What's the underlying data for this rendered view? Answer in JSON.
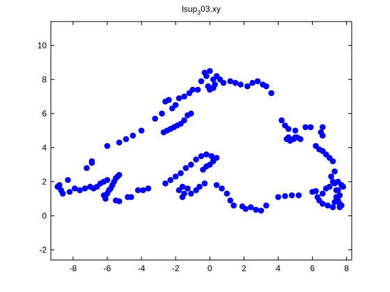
{
  "chart_data": {
    "type": "scatter",
    "title": "lsup",
    "title_sub": "3",
    "title_suffix": "03.xy",
    "xlim": [
      -9.3,
      8.3
    ],
    "ylim": [
      -2.6,
      11.4
    ],
    "xticks": [
      -8,
      -6,
      -4,
      -2,
      0,
      2,
      4,
      6,
      8
    ],
    "xtick_labels": [
      "-8",
      "-6",
      "-4",
      "-2",
      "0",
      "2",
      "4",
      "6",
      "8"
    ],
    "yticks": [
      -2,
      0,
      2,
      4,
      6,
      8,
      10
    ],
    "ytick_labels": [
      "-2",
      "0",
      "2",
      "4",
      "6",
      "8",
      "10"
    ],
    "grid": false,
    "marker_color": "#0000ff",
    "axis_color": "#000000",
    "points": [
      [
        -8.9,
        1.7
      ],
      [
        -8.8,
        1.8
      ],
      [
        -8.7,
        1.5
      ],
      [
        -8.6,
        1.3
      ],
      [
        -8.3,
        2.1
      ],
      [
        -8.2,
        1.4
      ],
      [
        -7.9,
        1.6
      ],
      [
        -7.6,
        1.5
      ],
      [
        -7.3,
        1.6
      ],
      [
        -7.0,
        1.7
      ],
      [
        -6.8,
        1.6
      ],
      [
        -6.6,
        1.7
      ],
      [
        -6.4,
        1.9
      ],
      [
        -6.2,
        2.0
      ],
      [
        -6.0,
        2.1
      ],
      [
        -7.2,
        2.8
      ],
      [
        -6.9,
        3.1
      ],
      [
        -6.2,
        1.2
      ],
      [
        -6.1,
        1.0
      ],
      [
        -6.0,
        1.3
      ],
      [
        -5.9,
        1.5
      ],
      [
        -5.8,
        1.6
      ],
      [
        -5.7,
        1.8
      ],
      [
        -5.6,
        2.0
      ],
      [
        -5.5,
        2.2
      ],
      [
        -5.4,
        2.3
      ],
      [
        -5.3,
        2.4
      ],
      [
        -5.5,
        0.9
      ],
      [
        -5.3,
        0.85
      ],
      [
        -4.8,
        1.1
      ],
      [
        -4.6,
        1.1
      ],
      [
        -4.2,
        1.5
      ],
      [
        -3.9,
        1.5
      ],
      [
        -3.6,
        1.6
      ],
      [
        -6.9,
        3.2
      ],
      [
        -6.0,
        4.1
      ],
      [
        -5.3,
        4.3
      ],
      [
        -4.9,
        4.5
      ],
      [
        -4.5,
        4.7
      ],
      [
        -4.0,
        5.0
      ],
      [
        -3.2,
        5.7
      ],
      [
        -2.8,
        6.0
      ],
      [
        -2.6,
        6.7
      ],
      [
        -2.4,
        6.8
      ],
      [
        -2.7,
        4.9
      ],
      [
        -2.5,
        5.0
      ],
      [
        -2.3,
        5.1
      ],
      [
        -2.1,
        5.2
      ],
      [
        -1.9,
        5.3
      ],
      [
        -1.7,
        5.4
      ],
      [
        -1.5,
        5.6
      ],
      [
        -1.3,
        5.9
      ],
      [
        -1.1,
        6.0
      ],
      [
        -2.2,
        6.3
      ],
      [
        -2.0,
        6.5
      ],
      [
        -1.8,
        6.9
      ],
      [
        -1.5,
        7.0
      ],
      [
        -1.2,
        7.2
      ],
      [
        -1.0,
        7.4
      ],
      [
        -0.7,
        7.4
      ],
      [
        -0.5,
        7.9
      ],
      [
        -0.3,
        8.4
      ],
      [
        -0.2,
        8.2
      ],
      [
        0.0,
        8.5
      ],
      [
        0.2,
        8.0
      ],
      [
        0.3,
        7.7
      ],
      [
        0.4,
        8.2
      ],
      [
        0.6,
        8.0
      ],
      [
        0.8,
        7.8
      ],
      [
        1.2,
        7.9
      ],
      [
        1.5,
        7.8
      ],
      [
        1.8,
        7.7
      ],
      [
        2.2,
        7.6
      ],
      [
        2.5,
        7.8
      ],
      [
        2.8,
        7.9
      ],
      [
        3.1,
        7.7
      ],
      [
        3.3,
        7.6
      ],
      [
        3.6,
        7.2
      ],
      [
        -0.1,
        7.6
      ],
      [
        0.0,
        7.4
      ],
      [
        0.2,
        7.5
      ],
      [
        -2.6,
        1.9
      ],
      [
        -2.3,
        2.1
      ],
      [
        -2.0,
        2.3
      ],
      [
        -1.7,
        2.5
      ],
      [
        -1.4,
        2.8
      ],
      [
        -1.1,
        3.0
      ],
      [
        -0.8,
        3.3
      ],
      [
        -0.5,
        3.5
      ],
      [
        -0.2,
        3.6
      ],
      [
        0.1,
        3.5
      ],
      [
        0.4,
        3.4
      ],
      [
        -0.4,
        2.7
      ],
      [
        -0.2,
        2.9
      ],
      [
        0.0,
        3.0
      ],
      [
        0.2,
        3.2
      ],
      [
        -1.8,
        1.5
      ],
      [
        -1.6,
        1.7
      ],
      [
        -1.3,
        1.6
      ],
      [
        -1.1,
        1.3
      ],
      [
        -0.8,
        1.5
      ],
      [
        -0.6,
        1.7
      ],
      [
        -0.3,
        1.9
      ],
      [
        -1.6,
        1.1
      ],
      [
        -1.5,
        1.3
      ],
      [
        0.4,
        1.8
      ],
      [
        0.7,
        1.6
      ],
      [
        1.0,
        1.3
      ],
      [
        1.2,
        0.9
      ],
      [
        1.4,
        0.6
      ],
      [
        1.9,
        0.55
      ],
      [
        2.1,
        0.4
      ],
      [
        2.4,
        0.5
      ],
      [
        2.7,
        0.35
      ],
      [
        3.0,
        0.3
      ],
      [
        3.3,
        0.6
      ],
      [
        4.0,
        1.1
      ],
      [
        4.4,
        1.15
      ],
      [
        4.8,
        1.2
      ],
      [
        5.2,
        1.2
      ],
      [
        6.0,
        1.4
      ],
      [
        6.2,
        1.45
      ],
      [
        6.6,
        1.3
      ],
      [
        6.8,
        1.6
      ],
      [
        7.0,
        1.7
      ],
      [
        7.3,
        1.9
      ],
      [
        7.5,
        2.0
      ],
      [
        7.7,
        1.8
      ],
      [
        7.8,
        1.7
      ],
      [
        7.5,
        1.5
      ],
      [
        7.6,
        1.2
      ],
      [
        7.5,
        0.9
      ],
      [
        7.6,
        0.7
      ],
      [
        7.7,
        0.6
      ],
      [
        7.2,
        0.5
      ],
      [
        6.9,
        0.6
      ],
      [
        6.6,
        0.7
      ],
      [
        6.4,
        0.9
      ],
      [
        6.3,
        1.1
      ],
      [
        4.2,
        5.6
      ],
      [
        4.4,
        5.3
      ],
      [
        4.6,
        5.1
      ],
      [
        5.0,
        5.0
      ],
      [
        5.6,
        5.2
      ],
      [
        5.9,
        5.2
      ],
      [
        4.5,
        4.5
      ],
      [
        4.7,
        4.4
      ],
      [
        4.9,
        4.5
      ],
      [
        5.1,
        4.6
      ],
      [
        5.3,
        4.5
      ],
      [
        5.0,
        4.6
      ],
      [
        4.6,
        4.6
      ],
      [
        6.6,
        5.2
      ],
      [
        6.5,
        4.9
      ],
      [
        6.6,
        4.7
      ],
      [
        6.2,
        4.1
      ],
      [
        6.4,
        3.9
      ],
      [
        6.6,
        3.8
      ],
      [
        6.8,
        3.6
      ],
      [
        7.0,
        3.4
      ],
      [
        7.2,
        3.2
      ],
      [
        7.3,
        2.6
      ],
      [
        7.1,
        2.3
      ],
      [
        7.2,
        2.0
      ],
      [
        7.4,
        1.5
      ],
      [
        7.4,
        1.1
      ],
      [
        7.6,
        0.5
      ],
      [
        7.3,
        0.8
      ]
    ]
  }
}
